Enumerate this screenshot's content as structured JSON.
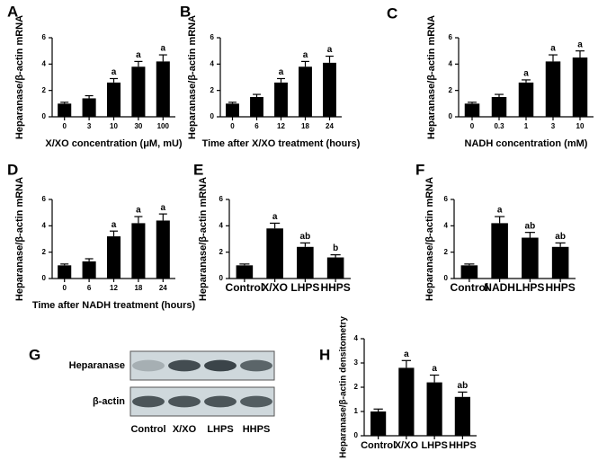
{
  "chart_data": [
    {
      "type": "bar",
      "panel": "A",
      "ylabel": "Heparanase/β-actin mRNA",
      "xlabel": "X/XO concentration (μM, mU)",
      "categories": [
        "0",
        "3",
        "10",
        "30",
        "100"
      ],
      "values": [
        1.0,
        1.4,
        2.6,
        3.8,
        4.2
      ],
      "errors": [
        0.1,
        0.2,
        0.3,
        0.4,
        0.5
      ],
      "annotations": [
        null,
        null,
        "a",
        "a",
        "a"
      ],
      "color": "#000000",
      "ylim": [
        0,
        6
      ],
      "yticks": [
        0,
        2,
        4,
        6
      ]
    },
    {
      "type": "bar",
      "panel": "B",
      "ylabel": "Heparanase/β-actin mRNA",
      "xlabel": "Time after X/XO treatment (hours)",
      "categories": [
        "0",
        "6",
        "12",
        "18",
        "24"
      ],
      "values": [
        1.0,
        1.5,
        2.6,
        3.8,
        4.1
      ],
      "errors": [
        0.1,
        0.2,
        0.3,
        0.4,
        0.5
      ],
      "annotations": [
        null,
        null,
        "a",
        "a",
        "a"
      ],
      "color": "#000000",
      "ylim": [
        0,
        6
      ],
      "yticks": [
        0,
        2,
        4,
        6
      ]
    },
    {
      "type": "bar",
      "panel": "C",
      "ylabel": "Heparanase/β-actin mRNA",
      "xlabel": "NADH concentration (mM)",
      "categories": [
        "0",
        "0.3",
        "1",
        "3",
        "10"
      ],
      "values": [
        1.0,
        1.5,
        2.6,
        4.2,
        4.5
      ],
      "errors": [
        0.1,
        0.2,
        0.2,
        0.5,
        0.5
      ],
      "annotations": [
        null,
        null,
        "a",
        "a",
        "a"
      ],
      "color": "#000000",
      "ylim": [
        0,
        6
      ],
      "yticks": [
        0,
        2,
        4,
        6
      ]
    },
    {
      "type": "bar",
      "panel": "D",
      "ylabel": "Heparanase/β-actin mRNA",
      "xlabel": "Time after NADH treatment (hours)",
      "categories": [
        "0",
        "6",
        "12",
        "18",
        "24"
      ],
      "values": [
        1.0,
        1.3,
        3.2,
        4.2,
        4.4
      ],
      "errors": [
        0.1,
        0.2,
        0.4,
        0.5,
        0.5
      ],
      "annotations": [
        null,
        null,
        "a",
        "a",
        "a"
      ],
      "color": "#000000",
      "ylim": [
        0,
        6
      ],
      "yticks": [
        0,
        2,
        4,
        6
      ]
    },
    {
      "type": "bar",
      "panel": "E",
      "ylabel": "Heparanase/β-actin mRNA",
      "categories": [
        "Control",
        "X/XO",
        "LHPS",
        "HHPS"
      ],
      "values": [
        1.0,
        3.8,
        2.4,
        1.6
      ],
      "errors": [
        0.1,
        0.4,
        0.3,
        0.2
      ],
      "annotations": [
        null,
        "a",
        "ab",
        "b"
      ],
      "color": "#000000",
      "ylim": [
        0,
        6
      ],
      "yticks": [
        0,
        2,
        4,
        6
      ]
    },
    {
      "type": "bar",
      "panel": "F",
      "ylabel": "Heparanase/β-actin mRNA",
      "categories": [
        "Control",
        "NADH",
        "LHPS",
        "HHPS"
      ],
      "values": [
        1.0,
        4.2,
        3.1,
        2.4
      ],
      "errors": [
        0.1,
        0.5,
        0.4,
        0.3
      ],
      "annotations": [
        null,
        "a",
        "ab",
        "ab"
      ],
      "color": "#000000",
      "ylim": [
        0,
        6
      ],
      "yticks": [
        0,
        2,
        4,
        6
      ]
    },
    {
      "type": "blot",
      "panel": "G",
      "rows": [
        "Heparanase",
        "β-actin"
      ],
      "categories": [
        "Control",
        "X/XO",
        "LHPS",
        "HHPS"
      ]
    },
    {
      "type": "bar",
      "panel": "H",
      "ylabel": "Heparanase/β-actin densitometry",
      "categories": [
        "Control",
        "X/XO",
        "LHPS",
        "HHPS"
      ],
      "values": [
        1.0,
        2.8,
        2.2,
        1.6
      ],
      "errors": [
        0.1,
        0.3,
        0.3,
        0.2
      ],
      "annotations": [
        null,
        "a",
        "a",
        "ab"
      ],
      "color": "#000000",
      "ylim": [
        0,
        4
      ],
      "yticks": [
        0,
        1,
        2,
        3,
        4
      ]
    }
  ]
}
